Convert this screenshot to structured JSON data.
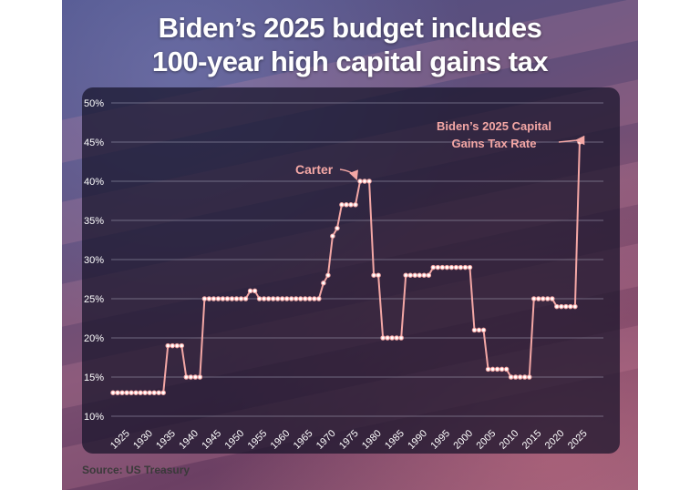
{
  "headline": {
    "line1": "Biden’s 2025 budget includes",
    "line2": "100-year high capital gains tax"
  },
  "source": "Source: US Treasury",
  "colors": {
    "line": "#f4a7a5",
    "marker_fill": "#ffffff",
    "annotation": "#f4a7a5",
    "grid": "#bdbdd0",
    "tick_text": "#ffffff"
  },
  "chart_data": {
    "type": "line",
    "title": "Biden’s 2025 budget includes 100-year high capital gains tax",
    "xlabel": "",
    "ylabel": "",
    "xlim": [
      1923,
      2029
    ],
    "ylim": [
      10,
      50
    ],
    "grid": true,
    "y_ticks": [
      10,
      15,
      20,
      25,
      30,
      35,
      40,
      45,
      50
    ],
    "y_tick_labels": [
      "10%",
      "15%",
      "20%",
      "25%",
      "30%",
      "35%",
      "40%",
      "45%",
      "50%"
    ],
    "x_ticks": [
      1925,
      1930,
      1935,
      1940,
      1945,
      1950,
      1955,
      1960,
      1965,
      1970,
      1975,
      1980,
      1985,
      1990,
      1995,
      2000,
      2005,
      2010,
      2015,
      2020,
      2025
    ],
    "x_tick_labels": [
      "1925",
      "1930",
      "1935",
      "1940",
      "1945",
      "1950",
      "1955",
      "1960",
      "1965",
      "1970",
      "1975",
      "1980",
      "1985",
      "1990",
      "1995",
      "2000",
      "2005",
      "2010",
      "2015",
      "2020",
      "2025"
    ],
    "x": [
      1923,
      1924,
      1925,
      1926,
      1927,
      1928,
      1929,
      1930,
      1931,
      1932,
      1933,
      1934,
      1935,
      1936,
      1937,
      1938,
      1939,
      1940,
      1941,
      1942,
      1943,
      1944,
      1945,
      1946,
      1947,
      1948,
      1949,
      1950,
      1951,
      1952,
      1953,
      1954,
      1955,
      1956,
      1957,
      1958,
      1959,
      1960,
      1961,
      1962,
      1963,
      1964,
      1965,
      1966,
      1967,
      1968,
      1969,
      1970,
      1971,
      1972,
      1973,
      1974,
      1975,
      1976,
      1977,
      1978,
      1979,
      1980,
      1981,
      1982,
      1983,
      1984,
      1985,
      1986,
      1987,
      1988,
      1989,
      1990,
      1991,
      1992,
      1993,
      1994,
      1995,
      1996,
      1997,
      1998,
      1999,
      2000,
      2001,
      2002,
      2003,
      2004,
      2005,
      2006,
      2007,
      2008,
      2009,
      2010,
      2011,
      2012,
      2013,
      2014,
      2015,
      2016,
      2017,
      2018,
      2019,
      2020,
      2021,
      2022,
      2023,
      2024,
      2025
    ],
    "values": [
      13,
      13,
      13,
      13,
      13,
      13,
      13,
      13,
      13,
      13,
      13,
      13,
      19,
      19,
      19,
      19,
      15,
      15,
      15,
      15,
      25,
      25,
      25,
      25,
      25,
      25,
      25,
      25,
      25,
      25,
      26,
      26,
      25,
      25,
      25,
      25,
      25,
      25,
      25,
      25,
      25,
      25,
      25,
      25,
      25,
      25,
      27,
      28,
      33,
      34,
      37,
      37,
      37,
      37,
      40,
      40,
      40,
      28,
      28,
      20,
      20,
      20,
      20,
      20,
      28,
      28,
      28,
      28,
      28,
      28,
      29,
      29,
      29,
      29,
      29,
      29,
      29,
      29,
      29,
      21,
      21,
      21,
      16,
      16,
      16,
      16,
      16,
      15,
      15,
      15,
      15,
      15,
      25,
      25,
      25,
      25,
      25,
      24,
      24,
      24,
      24,
      24,
      45
    ],
    "annotations": [
      {
        "text": "Carter",
        "x": 1977,
        "y": 40
      },
      {
        "text_line1": "Biden’s 2025 Capital",
        "text_line2": "Gains Tax Rate",
        "x": 2025,
        "y": 45
      }
    ]
  }
}
